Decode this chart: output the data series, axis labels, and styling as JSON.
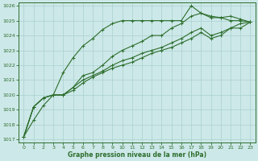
{
  "xlabel": "Graphe pression niveau de la mer (hPa)",
  "background_color": "#cde8e8",
  "grid_color": "#a8d0d0",
  "line_color": "#2d6e2d",
  "xlim": [
    -0.5,
    23.5
  ],
  "ylim": [
    1016.8,
    1026.2
  ],
  "yticks": [
    1017,
    1018,
    1019,
    1020,
    1021,
    1022,
    1023,
    1024,
    1025,
    1026
  ],
  "xticks": [
    0,
    1,
    2,
    3,
    4,
    5,
    6,
    7,
    8,
    9,
    10,
    11,
    12,
    13,
    14,
    15,
    16,
    17,
    18,
    19,
    20,
    21,
    22,
    23
  ],
  "series": [
    [
      1017.2,
      1018.3,
      1019.3,
      1020.0,
      1021.5,
      1022.5,
      1023.3,
      1023.8,
      1024.4,
      1024.8,
      1025.0,
      1025.0,
      1025.0,
      1025.0,
      1025.0,
      1025.0,
      1025.0,
      1026.0,
      1025.5,
      1025.2,
      1025.2,
      1025.0,
      1025.0,
      1024.9
    ],
    [
      1017.2,
      1019.2,
      1019.8,
      1020.0,
      1020.0,
      1020.5,
      1021.3,
      1021.5,
      1022.0,
      1022.6,
      1023.0,
      1023.3,
      1023.6,
      1024.0,
      1024.0,
      1024.5,
      1024.8,
      1025.3,
      1025.5,
      1025.3,
      1025.2,
      1025.3,
      1025.1,
      1024.9
    ],
    [
      1017.2,
      1019.2,
      1019.8,
      1020.0,
      1020.0,
      1020.5,
      1021.0,
      1021.3,
      1021.6,
      1022.0,
      1022.3,
      1022.5,
      1022.8,
      1023.0,
      1023.2,
      1023.5,
      1023.8,
      1024.2,
      1024.5,
      1024.0,
      1024.2,
      1024.5,
      1024.5,
      1024.9
    ],
    [
      1017.2,
      1019.2,
      1019.8,
      1020.0,
      1020.0,
      1020.3,
      1020.8,
      1021.2,
      1021.5,
      1021.8,
      1022.0,
      1022.2,
      1022.5,
      1022.8,
      1023.0,
      1023.2,
      1023.5,
      1023.8,
      1024.2,
      1023.8,
      1024.0,
      1024.5,
      1024.8,
      1024.9
    ]
  ]
}
